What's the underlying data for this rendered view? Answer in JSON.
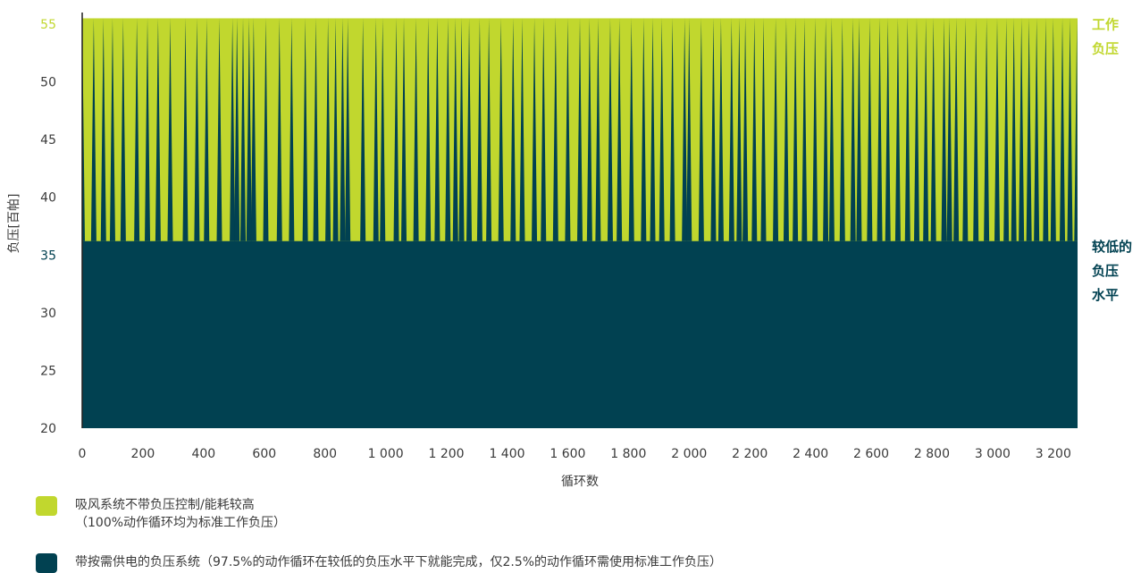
{
  "chart_data": {
    "type": "area",
    "xlabel": "循环数",
    "ylabel": "负压[百帕]",
    "xlim": [
      0,
      3280
    ],
    "ylim": [
      20,
      56
    ],
    "x_ticks": [
      "0",
      "200",
      "400",
      "600",
      "800",
      "1 000",
      "1 200",
      "1 400",
      "1 600",
      "1 800",
      "2 000",
      "2 200",
      "2 400",
      "2 600",
      "2 800",
      "3 000",
      "3 200"
    ],
    "y_ticks": [
      "20",
      "25",
      "30",
      "35",
      "40",
      "45",
      "50",
      "55"
    ],
    "highlight_y_ticks": [
      "55",
      "35"
    ],
    "series": [
      {
        "name": "吸风系统不带负压控制/能耗较高（100%动作循环均为标准工作负压）",
        "color": "#c1d72e",
        "type": "constant",
        "value": 55.5,
        "x_range": [
          0,
          3280
        ]
      },
      {
        "name": "带按需供电的负压系统（97.5%的动作循环在较低的负压水平下就能完成，仅2.5%的动作循环需使用标准工作负压）",
        "color": "#014151",
        "type": "spikes",
        "baseline": 36.2,
        "peak": 55.5,
        "spike_x": [
          0,
          38,
          70,
          100,
          135,
          180,
          215,
          250,
          290,
          340,
          378,
          410,
          452,
          495,
          510,
          530,
          550,
          565,
          605,
          650,
          690,
          735,
          770,
          810,
          835,
          858,
          875,
          925,
          968,
          990,
          1035,
          1060,
          1100,
          1140,
          1170,
          1205,
          1230,
          1250,
          1275,
          1310,
          1340,
          1380,
          1420,
          1450,
          1490,
          1520,
          1560,
          1600,
          1640,
          1672,
          1700,
          1740,
          1770,
          1810,
          1850,
          1880,
          1910,
          1945,
          1985,
          2000,
          2040,
          2080,
          2105,
          2140,
          2165,
          2185,
          2215,
          2245,
          2285,
          2320,
          2350,
          2380,
          2415,
          2450,
          2470,
          2505,
          2540,
          2560,
          2595,
          2628,
          2655,
          2688,
          2720,
          2750,
          2780,
          2805,
          2840,
          2858,
          2880,
          2910,
          2945,
          2980,
          3015,
          3045,
          3070,
          3095,
          3120,
          3145,
          3175,
          3200,
          3230,
          3255,
          3278
        ]
      }
    ],
    "annotations": [
      {
        "text_lines": [
          "工作",
          "负压"
        ],
        "y": 55.5,
        "color": "#c1d72e"
      },
      {
        "text_lines": [
          "较低的",
          "负压",
          "水平"
        ],
        "y": 36.2,
        "color": "#014151"
      }
    ]
  },
  "legend": [
    {
      "line1": "吸风系统不带负压控制/能耗较高",
      "line2": "（100%动作循环均为标准工作负压）",
      "color": "#c1d72e"
    },
    {
      "line1": "带按需供电的负压系统（97.5%的动作循环在较低的负压水平下就能完成，仅2.5%的动作循环需使用标准工作负压）",
      "line2": "",
      "color": "#014151"
    }
  ]
}
